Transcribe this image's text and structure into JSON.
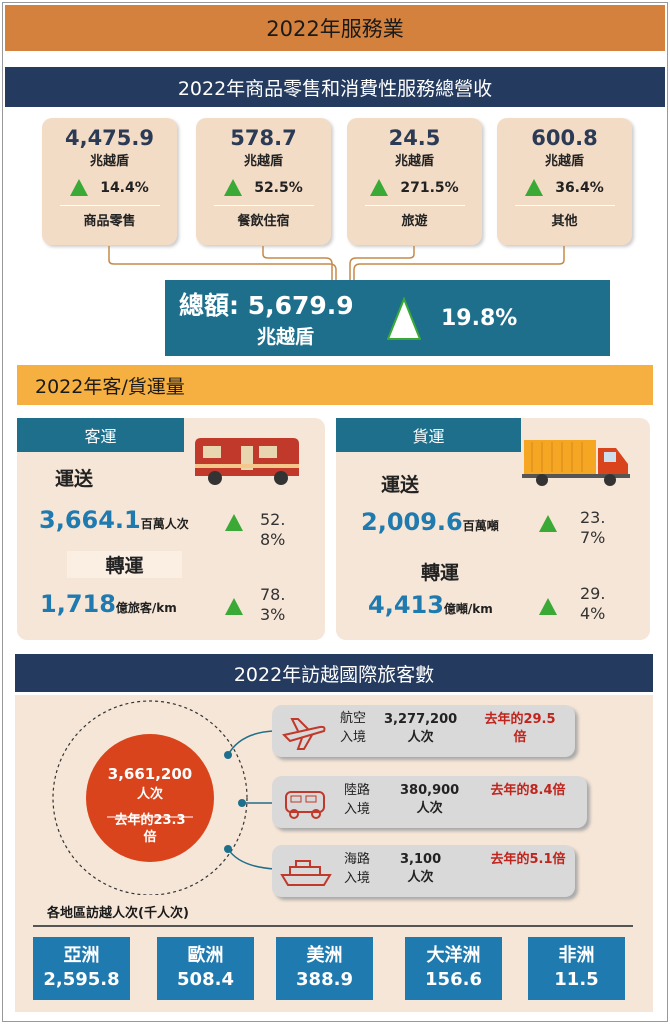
{
  "header": {
    "title": "2022年服務業"
  },
  "revenue": {
    "title": "2022年商品零售和消費性服務總營收",
    "cards": [
      {
        "value": "4,475.9",
        "unit": "兆越盾",
        "growth": "14.4%",
        "label": "商品零售"
      },
      {
        "value": "578.7",
        "unit": "兆越盾",
        "growth": "52.5%",
        "label": "餐飲住宿"
      },
      {
        "value": "24.5",
        "unit": "兆越盾",
        "growth": "271.5%",
        "label": "旅遊"
      },
      {
        "value": "600.8",
        "unit": "兆越盾",
        "growth": "36.4%",
        "label": "其他"
      }
    ],
    "total": {
      "label": "總額:",
      "value": "5,679.9",
      "unit": "兆越盾",
      "growth": "19.8%"
    }
  },
  "transport": {
    "title": "2022年客/貨運量",
    "panels": [
      {
        "tab": "客運",
        "carried_label": "運送",
        "carried_value": "3,664.1",
        "carried_unit": "百萬人次",
        "carried_growth": "52.8%",
        "rotation_label": "轉運",
        "rotation_value": "1,718",
        "rotation_unit": "億旅客/km",
        "rotation_growth": "78.3%"
      },
      {
        "tab": "貨運",
        "carried_label": "運送",
        "carried_value": "2,009.6",
        "carried_unit": "百萬噸",
        "carried_growth": "23.7%",
        "rotation_label": "轉運",
        "rotation_value": "4,413",
        "rotation_unit": "億噸/km",
        "rotation_growth": "29.4%"
      }
    ]
  },
  "visitors": {
    "title": "2022年訪越國際旅客數",
    "total": {
      "value": "3,661,200",
      "unit": "人次",
      "compare": "去年的23.3倍"
    },
    "modes": [
      {
        "label": "航空入境",
        "value": "3,277,200",
        "unit": "人次",
        "compare": "去年的29.5倍"
      },
      {
        "label": "陸路入境",
        "value": "380,900",
        "unit": "人次",
        "compare": "去年的8.4倍"
      },
      {
        "label": "海路入境",
        "value": "3,100",
        "unit": "人次",
        "compare": "去年的5.1倍"
      }
    ],
    "regions_caption": "各地區訪越人次(千人次)",
    "regions": [
      {
        "name": "亞洲",
        "value": "2,595.8"
      },
      {
        "name": "歐洲",
        "value": "508.4"
      },
      {
        "name": "美洲",
        "value": "388.9"
      },
      {
        "name": "大洋洲",
        "value": "156.6"
      },
      {
        "name": "非洲",
        "value": "11.5"
      }
    ]
  }
}
